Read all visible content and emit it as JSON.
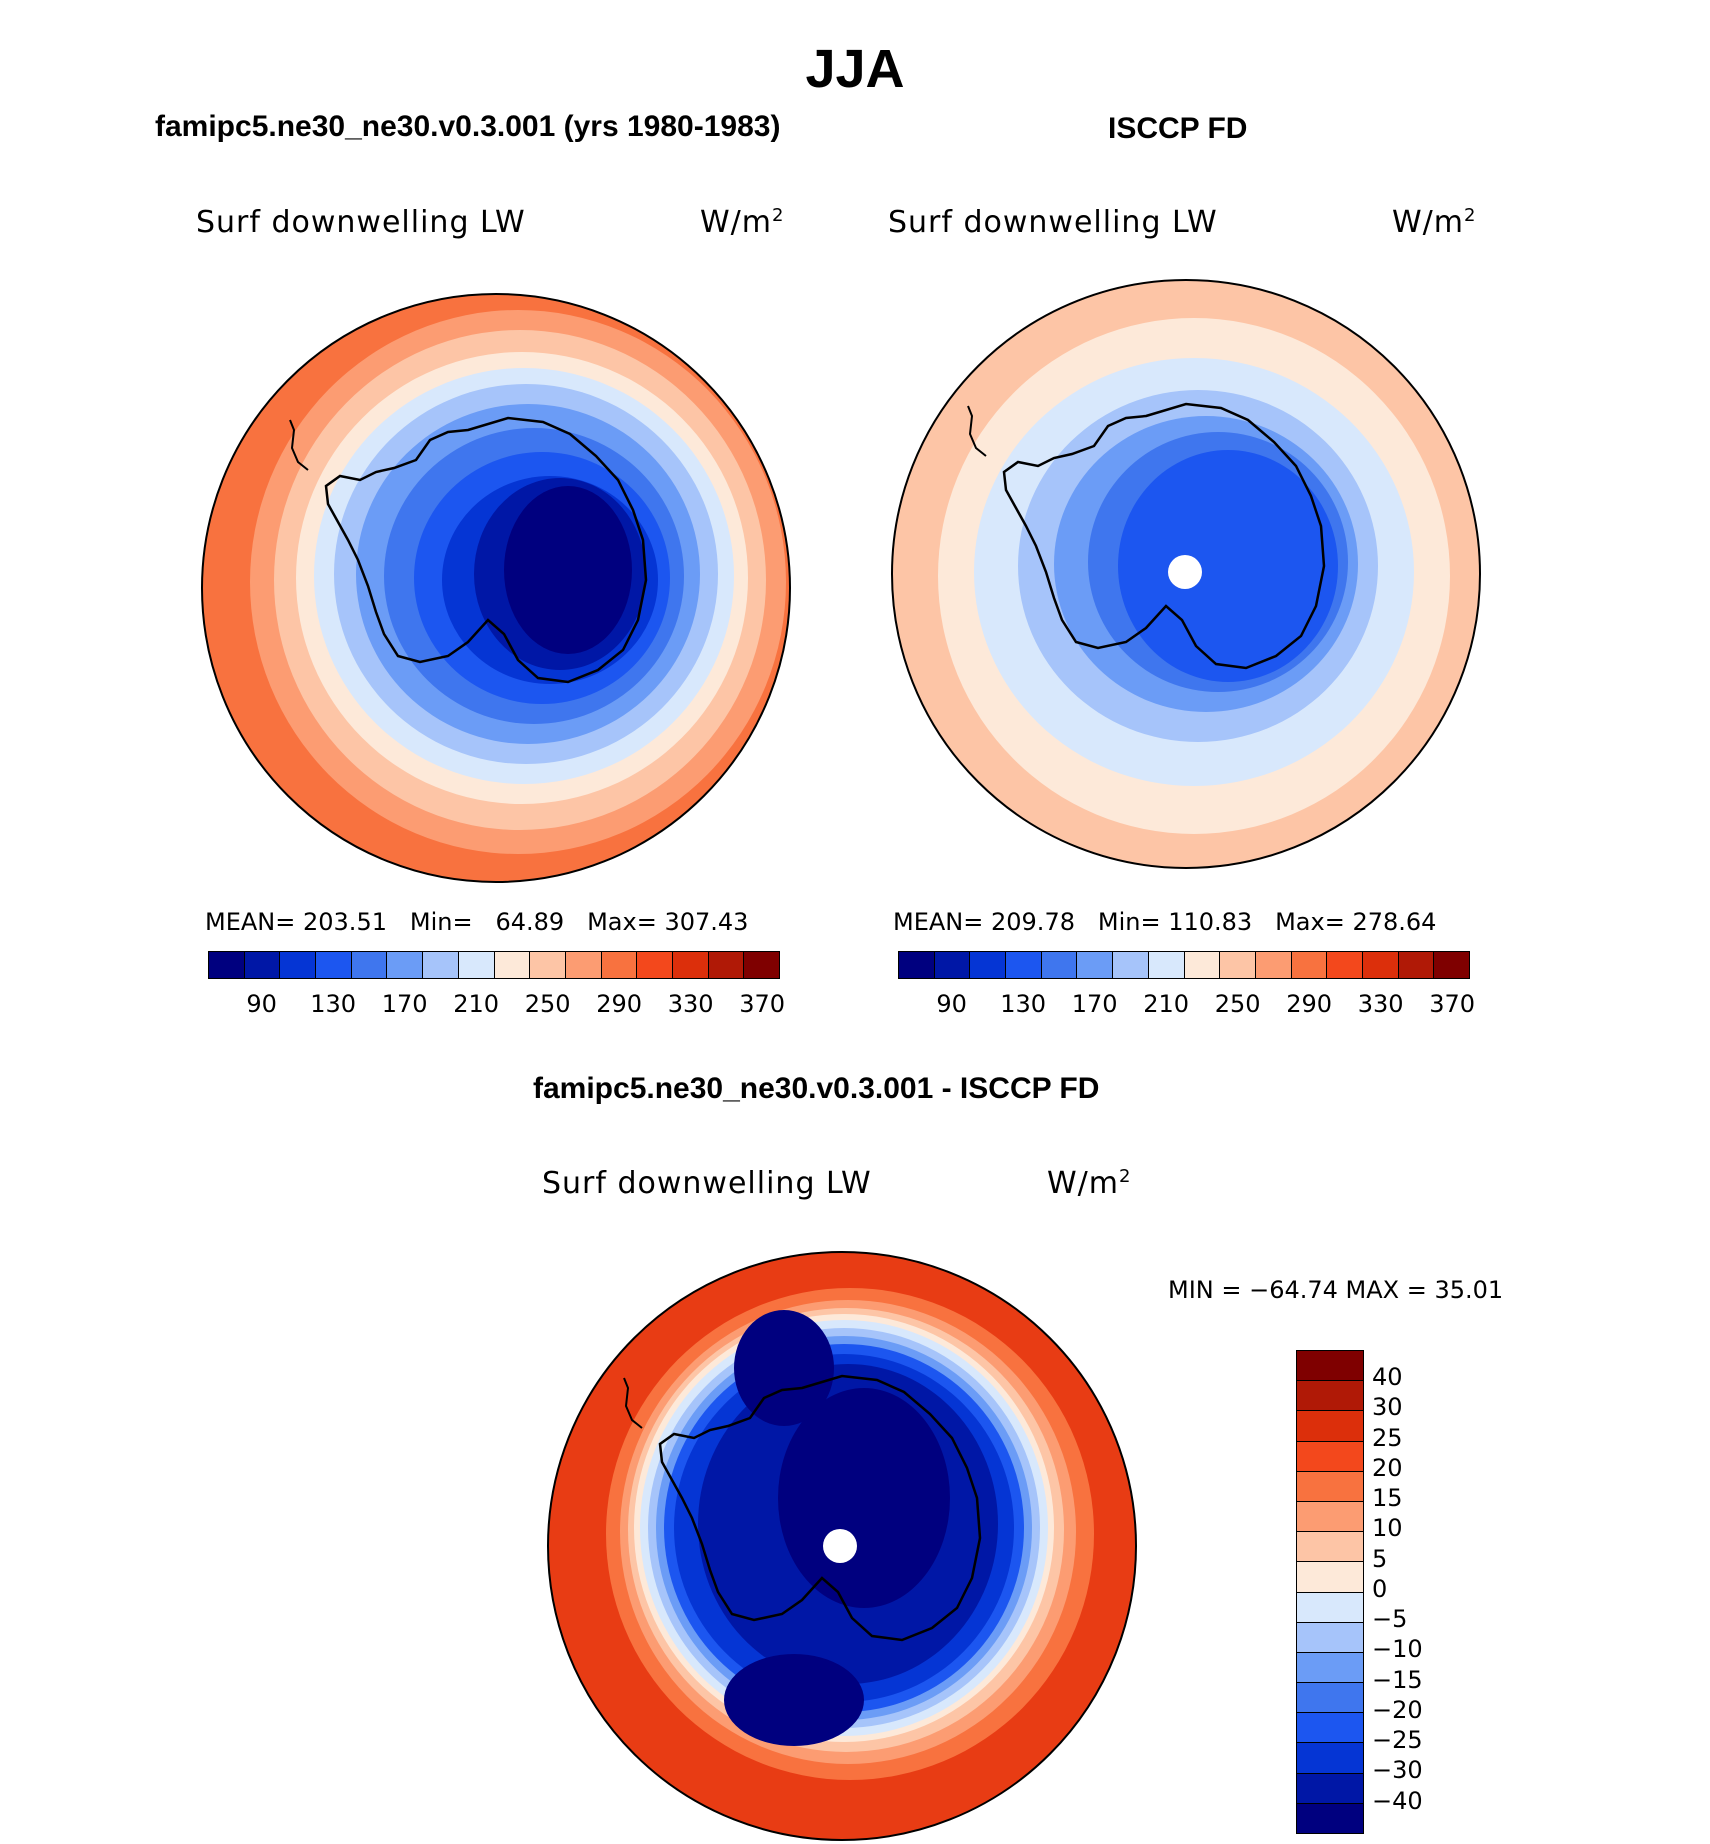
{
  "title": "JJA",
  "panels": [
    {
      "title": "famipc5.ne30_ne30.v0.3.001 (yrs 1980-1983)",
      "variable": "Surf downwelling LW",
      "units_base": "W/m",
      "units_sup": "2",
      "mean_label": "MEAN=",
      "mean": "203.51",
      "min_label": "Min=",
      "min": "64.89",
      "max_label": "Max=",
      "max": "307.43"
    },
    {
      "title": "ISCCP FD",
      "variable": "Surf downwelling LW",
      "units_base": "W/m",
      "units_sup": "2",
      "mean_label": "MEAN=",
      "mean": "209.78",
      "min_label": "Min=",
      "min": "110.83",
      "max_label": "Max=",
      "max": "278.64"
    }
  ],
  "abs_colorbar": {
    "ticks": [
      "90",
      "130",
      "170",
      "210",
      "250",
      "290",
      "330",
      "370"
    ],
    "colors": [
      "#00007f",
      "#0017a6",
      "#0535d4",
      "#1c56f0",
      "#3f76ee",
      "#6b9cf6",
      "#a6c4fa",
      "#d8e8fc",
      "#fde9d9",
      "#fdc5a6",
      "#fc9c72",
      "#f8723f",
      "#f3481c",
      "#dc2f0b",
      "#b01906",
      "#7f0000"
    ]
  },
  "diff_panel": {
    "title": "famipc5.ne30_ne30.v0.3.001 - ISCCP FD",
    "variable": "Surf downwelling LW",
    "units_base": "W/m",
    "units_sup": "2",
    "minmax_text": "MIN = −64.74 MAX =  35.01"
  },
  "diff_colorbar": {
    "ticks": [
      "40",
      "30",
      "25",
      "20",
      "15",
      "10",
      "5",
      "0",
      "−5",
      "−10",
      "−15",
      "−20",
      "−25",
      "−30",
      "−40"
    ],
    "colors": [
      "#7f0000",
      "#b01906",
      "#dc2f0b",
      "#f3481c",
      "#f8723f",
      "#fc9c72",
      "#fdc5a6",
      "#fde9d9",
      "#d8e8fc",
      "#a6c4fa",
      "#6b9cf6",
      "#3f76ee",
      "#1c56f0",
      "#0535d4",
      "#0017a6",
      "#00007f"
    ]
  }
}
